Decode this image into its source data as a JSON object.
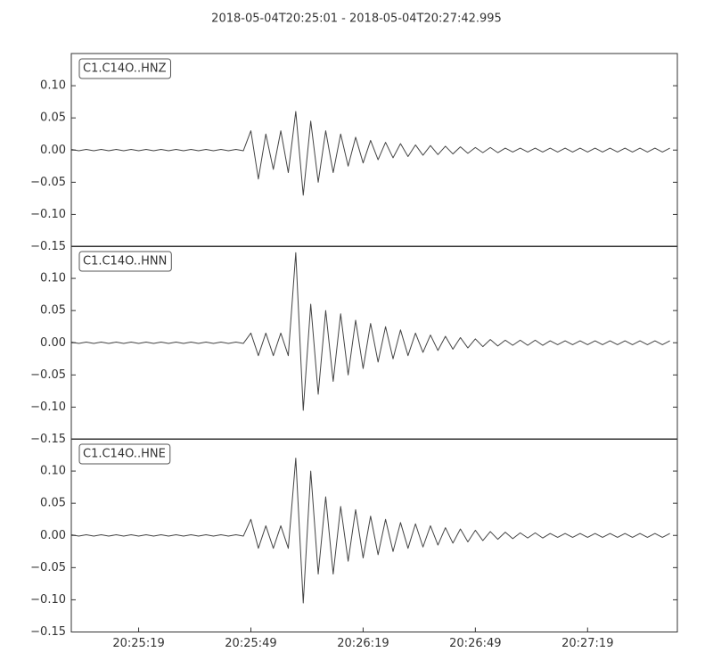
{
  "title": "2018-05-04T20:25:01  -  2018-05-04T20:27:42.995",
  "chart_data": [
    {
      "type": "line",
      "label": "C1.C14O..HNZ",
      "color": "#444444",
      "x": [
        "20:25:01",
        "20:25:03",
        "20:25:05",
        "20:25:07",
        "20:25:09",
        "20:25:11",
        "20:25:13",
        "20:25:15",
        "20:25:17",
        "20:25:19",
        "20:25:21",
        "20:25:23",
        "20:25:25",
        "20:25:27",
        "20:25:29",
        "20:25:31",
        "20:25:33",
        "20:25:35",
        "20:25:37",
        "20:25:39",
        "20:25:41",
        "20:25:43",
        "20:25:45",
        "20:25:47",
        "20:25:49",
        "20:25:51",
        "20:25:53",
        "20:25:55",
        "20:25:57",
        "20:25:59",
        "20:26:01",
        "20:26:03",
        "20:26:05",
        "20:26:07",
        "20:26:09",
        "20:26:11",
        "20:26:13",
        "20:26:15",
        "20:26:17",
        "20:26:19",
        "20:26:21",
        "20:26:23",
        "20:26:25",
        "20:26:27",
        "20:26:29",
        "20:26:31",
        "20:26:33",
        "20:26:35",
        "20:26:37",
        "20:26:39",
        "20:26:41",
        "20:26:43",
        "20:26:45",
        "20:26:47",
        "20:26:49",
        "20:26:51",
        "20:26:53",
        "20:26:55",
        "20:26:57",
        "20:26:59",
        "20:27:01",
        "20:27:03",
        "20:27:05",
        "20:27:07",
        "20:27:09",
        "20:27:11",
        "20:27:13",
        "20:27:15",
        "20:27:17",
        "20:27:19",
        "20:27:21",
        "20:27:23",
        "20:27:25",
        "20:27:27",
        "20:27:29",
        "20:27:31",
        "20:27:33",
        "20:27:35",
        "20:27:37",
        "20:27:39",
        "20:27:41"
      ],
      "values": [
        0.001,
        -0.001,
        0.001,
        -0.001,
        0.001,
        -0.001,
        0.001,
        -0.001,
        0.001,
        -0.001,
        0.001,
        -0.001,
        0.001,
        -0.001,
        0.001,
        -0.001,
        0.001,
        -0.001,
        0.001,
        -0.001,
        0.001,
        -0.001,
        0.001,
        -0.001,
        0.03,
        -0.045,
        0.025,
        -0.03,
        0.03,
        -0.035,
        0.06,
        -0.07,
        0.045,
        -0.05,
        0.03,
        -0.035,
        0.025,
        -0.025,
        0.02,
        -0.02,
        0.015,
        -0.015,
        0.012,
        -0.012,
        0.01,
        -0.01,
        0.008,
        -0.008,
        0.007,
        -0.007,
        0.006,
        -0.006,
        0.005,
        -0.005,
        0.004,
        -0.004,
        0.004,
        -0.004,
        0.003,
        -0.003,
        0.003,
        -0.003,
        0.003,
        -0.003,
        0.003,
        -0.003,
        0.003,
        -0.003,
        0.003,
        -0.003,
        0.003,
        -0.003,
        0.003,
        -0.003,
        0.003,
        -0.003,
        0.003,
        -0.003,
        0.003,
        -0.003,
        0.003
      ],
      "xlim": [
        "20:25:01",
        "20:27:42.995"
      ],
      "ylim": [
        -0.15,
        0.15
      ],
      "yticks": [
        {
          "value": -0.15,
          "label": "−0.15"
        },
        {
          "value": -0.1,
          "label": "−0.10"
        },
        {
          "value": -0.05,
          "label": "−0.05"
        },
        {
          "value": 0,
          "label": "0.00"
        },
        {
          "value": 0.05,
          "label": "0.05"
        },
        {
          "value": 0.1,
          "label": "0.10"
        }
      ]
    },
    {
      "type": "line",
      "label": "C1.C14O..HNN",
      "color": "#444444",
      "x": [
        "20:25:01",
        "20:25:03",
        "20:25:05",
        "20:25:07",
        "20:25:09",
        "20:25:11",
        "20:25:13",
        "20:25:15",
        "20:25:17",
        "20:25:19",
        "20:25:21",
        "20:25:23",
        "20:25:25",
        "20:25:27",
        "20:25:29",
        "20:25:31",
        "20:25:33",
        "20:25:35",
        "20:25:37",
        "20:25:39",
        "20:25:41",
        "20:25:43",
        "20:25:45",
        "20:25:47",
        "20:25:49",
        "20:25:51",
        "20:25:53",
        "20:25:55",
        "20:25:57",
        "20:25:59",
        "20:26:01",
        "20:26:03",
        "20:26:05",
        "20:26:07",
        "20:26:09",
        "20:26:11",
        "20:26:13",
        "20:26:15",
        "20:26:17",
        "20:26:19",
        "20:26:21",
        "20:26:23",
        "20:26:25",
        "20:26:27",
        "20:26:29",
        "20:26:31",
        "20:26:33",
        "20:26:35",
        "20:26:37",
        "20:26:39",
        "20:26:41",
        "20:26:43",
        "20:26:45",
        "20:26:47",
        "20:26:49",
        "20:26:51",
        "20:26:53",
        "20:26:55",
        "20:26:57",
        "20:26:59",
        "20:27:01",
        "20:27:03",
        "20:27:05",
        "20:27:07",
        "20:27:09",
        "20:27:11",
        "20:27:13",
        "20:27:15",
        "20:27:17",
        "20:27:19",
        "20:27:21",
        "20:27:23",
        "20:27:25",
        "20:27:27",
        "20:27:29",
        "20:27:31",
        "20:27:33",
        "20:27:35",
        "20:27:37",
        "20:27:39",
        "20:27:41"
      ],
      "values": [
        0.001,
        -0.001,
        0.001,
        -0.001,
        0.001,
        -0.001,
        0.001,
        -0.001,
        0.001,
        -0.001,
        0.001,
        -0.001,
        0.001,
        -0.001,
        0.001,
        -0.001,
        0.001,
        -0.001,
        0.001,
        -0.001,
        0.001,
        -0.001,
        0.001,
        -0.001,
        0.015,
        -0.02,
        0.015,
        -0.02,
        0.015,
        -0.02,
        0.14,
        -0.105,
        0.06,
        -0.08,
        0.05,
        -0.06,
        0.045,
        -0.05,
        0.035,
        -0.04,
        0.03,
        -0.03,
        0.025,
        -0.025,
        0.02,
        -0.02,
        0.015,
        -0.015,
        0.012,
        -0.012,
        0.01,
        -0.01,
        0.008,
        -0.008,
        0.006,
        -0.006,
        0.005,
        -0.005,
        0.004,
        -0.004,
        0.004,
        -0.004,
        0.004,
        -0.004,
        0.003,
        -0.003,
        0.003,
        -0.003,
        0.003,
        -0.003,
        0.003,
        -0.003,
        0.003,
        -0.003,
        0.003,
        -0.003,
        0.003,
        -0.003,
        0.003,
        -0.003,
        0.003
      ],
      "xlim": [
        "20:25:01",
        "20:27:42.995"
      ],
      "ylim": [
        -0.15,
        0.15
      ],
      "yticks": [
        {
          "value": -0.15,
          "label": "−0.15"
        },
        {
          "value": -0.1,
          "label": "−0.10"
        },
        {
          "value": -0.05,
          "label": "−0.05"
        },
        {
          "value": 0,
          "label": "0.00"
        },
        {
          "value": 0.05,
          "label": "0.05"
        },
        {
          "value": 0.1,
          "label": "0.10"
        }
      ]
    },
    {
      "type": "line",
      "label": "C1.C14O..HNE",
      "color": "#444444",
      "x": [
        "20:25:01",
        "20:25:03",
        "20:25:05",
        "20:25:07",
        "20:25:09",
        "20:25:11",
        "20:25:13",
        "20:25:15",
        "20:25:17",
        "20:25:19",
        "20:25:21",
        "20:25:23",
        "20:25:25",
        "20:25:27",
        "20:25:29",
        "20:25:31",
        "20:25:33",
        "20:25:35",
        "20:25:37",
        "20:25:39",
        "20:25:41",
        "20:25:43",
        "20:25:45",
        "20:25:47",
        "20:25:49",
        "20:25:51",
        "20:25:53",
        "20:25:55",
        "20:25:57",
        "20:25:59",
        "20:26:01",
        "20:26:03",
        "20:26:05",
        "20:26:07",
        "20:26:09",
        "20:26:11",
        "20:26:13",
        "20:26:15",
        "20:26:17",
        "20:26:19",
        "20:26:21",
        "20:26:23",
        "20:26:25",
        "20:26:27",
        "20:26:29",
        "20:26:31",
        "20:26:33",
        "20:26:35",
        "20:26:37",
        "20:26:39",
        "20:26:41",
        "20:26:43",
        "20:26:45",
        "20:26:47",
        "20:26:49",
        "20:26:51",
        "20:26:53",
        "20:26:55",
        "20:26:57",
        "20:26:59",
        "20:27:01",
        "20:27:03",
        "20:27:05",
        "20:27:07",
        "20:27:09",
        "20:27:11",
        "20:27:13",
        "20:27:15",
        "20:27:17",
        "20:27:19",
        "20:27:21",
        "20:27:23",
        "20:27:25",
        "20:27:27",
        "20:27:29",
        "20:27:31",
        "20:27:33",
        "20:27:35",
        "20:27:37",
        "20:27:39",
        "20:27:41"
      ],
      "values": [
        0.001,
        -0.001,
        0.001,
        -0.001,
        0.001,
        -0.001,
        0.001,
        -0.001,
        0.001,
        -0.001,
        0.001,
        -0.001,
        0.001,
        -0.001,
        0.001,
        -0.001,
        0.001,
        -0.001,
        0.001,
        -0.001,
        0.001,
        -0.001,
        0.001,
        -0.001,
        0.025,
        -0.02,
        0.015,
        -0.02,
        0.015,
        -0.02,
        0.12,
        -0.105,
        0.1,
        -0.06,
        0.06,
        -0.06,
        0.045,
        -0.04,
        0.04,
        -0.035,
        0.03,
        -0.03,
        0.025,
        -0.025,
        0.02,
        -0.02,
        0.018,
        -0.018,
        0.015,
        -0.015,
        0.012,
        -0.012,
        0.01,
        -0.01,
        0.008,
        -0.008,
        0.006,
        -0.006,
        0.005,
        -0.005,
        0.004,
        -0.004,
        0.004,
        -0.004,
        0.003,
        -0.003,
        0.003,
        -0.003,
        0.003,
        -0.003,
        0.003,
        -0.003,
        0.003,
        -0.003,
        0.003,
        -0.003,
        0.003,
        -0.003,
        0.003,
        -0.003,
        0.003
      ],
      "xlim": [
        "20:25:01",
        "20:27:42.995"
      ],
      "ylim": [
        -0.15,
        0.15
      ],
      "yticks": [
        {
          "value": -0.15,
          "label": "−0.15"
        },
        {
          "value": -0.1,
          "label": "−0.10"
        },
        {
          "value": -0.05,
          "label": "−0.05"
        },
        {
          "value": 0,
          "label": "0.00"
        },
        {
          "value": 0.05,
          "label": "0.05"
        },
        {
          "value": 0.1,
          "label": "0.10"
        }
      ],
      "xticks": [
        "20:25:19",
        "20:25:49",
        "20:26:19",
        "20:26:49",
        "20:27:19"
      ]
    }
  ]
}
